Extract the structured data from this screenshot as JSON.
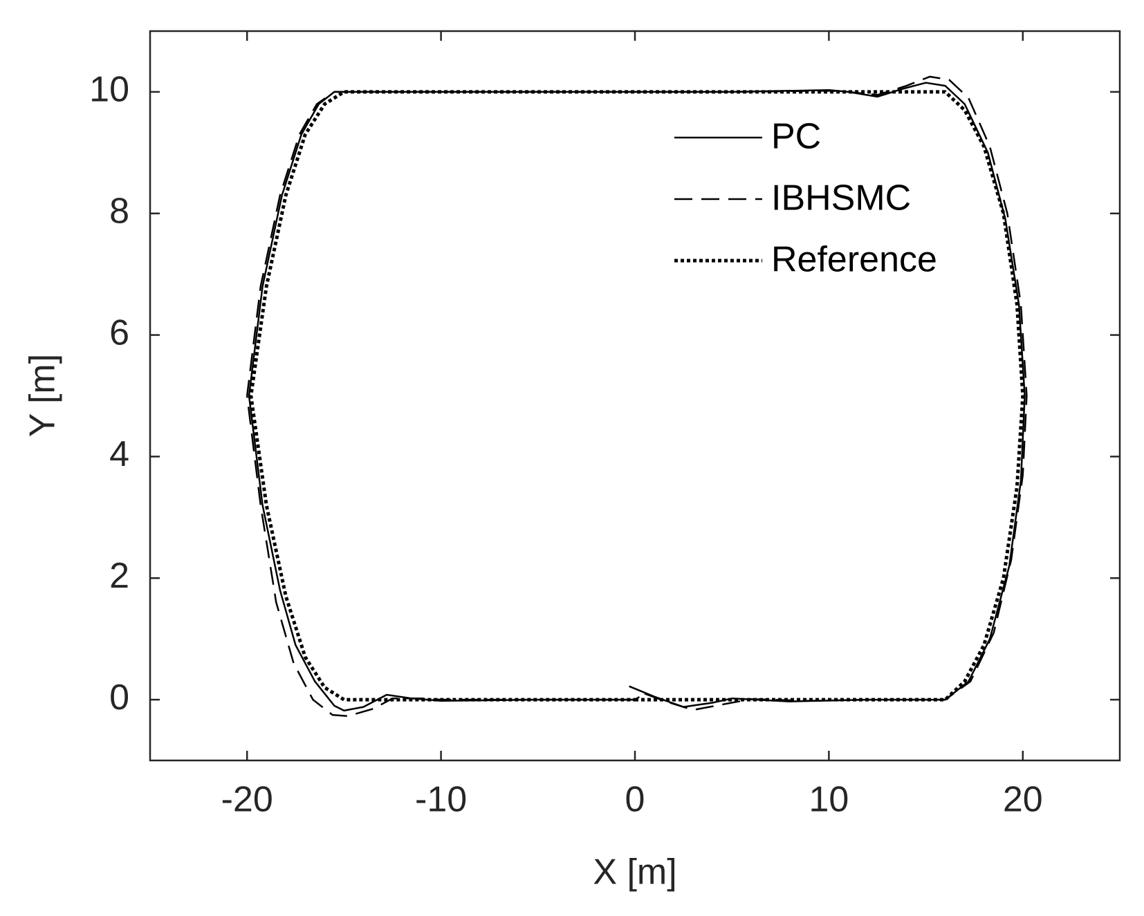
{
  "chart_data": {
    "type": "line",
    "xlabel": "X [m]",
    "ylabel": "Y [m]",
    "xlim": [
      -25,
      25
    ],
    "ylim": [
      -1,
      11
    ],
    "xticks": [
      -20,
      -10,
      0,
      10,
      20
    ],
    "yticks": [
      0,
      2,
      4,
      6,
      8,
      10
    ],
    "legend": "upper right",
    "series": [
      {
        "name": "PC",
        "color": "#000000",
        "line_style": "solid",
        "x": [
          -0.3,
          1,
          2.5,
          4,
          5,
          8,
          12,
          16,
          17.2,
          18.3,
          19.3,
          19.9,
          20.1,
          19.8,
          19.1,
          18.2,
          17,
          16,
          15,
          13.8,
          12.5,
          11,
          10,
          5,
          0,
          -10,
          -15.5,
          -16.3,
          -17.2,
          -18.2,
          -19.2,
          -19.9,
          -19.2,
          -18.3,
          -17.5,
          -16.5,
          -15.5,
          -15,
          -14,
          -12.8,
          -11.5,
          -10,
          -5,
          0
        ],
        "values": [
          0.22,
          0.05,
          -0.12,
          -0.05,
          0.02,
          -0.03,
          0,
          0,
          0.3,
          1,
          2.2,
          3.6,
          5,
          6.5,
          7.9,
          9,
          9.8,
          10.1,
          10.15,
          10.05,
          9.92,
          10.0,
          10.03,
          10,
          10,
          10,
          10,
          9.8,
          9.3,
          8.3,
          6.8,
          5,
          3.2,
          1.8,
          0.9,
          0.3,
          -0.1,
          -0.18,
          -0.12,
          0.08,
          0.02,
          -0.02,
          0,
          0
        ]
      },
      {
        "name": "IBHSMC",
        "color": "#000000",
        "line_style": "dashed",
        "x": [
          0.5,
          1.5,
          3,
          4.5,
          6,
          9,
          12,
          16,
          17.3,
          18.5,
          19.4,
          20,
          20.2,
          19.9,
          19.2,
          18.3,
          17.2,
          16.2,
          15.2,
          14,
          12.5,
          11,
          10,
          5,
          0,
          -10,
          -15.5,
          -16.4,
          -17.3,
          -18.3,
          -19.3,
          -20,
          -19.3,
          -18.5,
          -17.6,
          -16.6,
          -15.6,
          -14.8,
          -13.5,
          -12.5,
          -11,
          -10,
          -5,
          0,
          0.5
        ],
        "values": [
          0.1,
          -0.02,
          -0.17,
          -0.08,
          0.01,
          -0.02,
          0,
          0,
          0.3,
          1.1,
          2.3,
          3.7,
          5,
          6.5,
          8,
          9.1,
          9.9,
          10.2,
          10.25,
          10.1,
          9.95,
          10.0,
          10.02,
          10,
          10,
          10,
          10,
          9.8,
          9.3,
          8.3,
          6.8,
          5,
          3.2,
          1.6,
          0.6,
          0,
          -0.25,
          -0.27,
          -0.15,
          0.02,
          0.02,
          0,
          0,
          0,
          0.1
        ]
      },
      {
        "name": "Reference",
        "color": "#000000",
        "line_style": "dotted",
        "x": [
          0,
          5,
          10,
          15,
          16,
          17,
          18,
          19,
          19.7,
          20,
          19.7,
          19,
          18,
          17,
          16,
          10,
          0,
          -10,
          -15,
          -16,
          -17,
          -18,
          -19,
          -19.8,
          -19,
          -18,
          -17,
          -16,
          -15,
          -10,
          -5,
          0
        ],
        "values": [
          0,
          0,
          0,
          0,
          0,
          0.3,
          0.9,
          2,
          3.5,
          5,
          6.5,
          8,
          9.1,
          9.7,
          10,
          10,
          10,
          10,
          10,
          9.8,
          9.3,
          8.3,
          6.8,
          5,
          3.2,
          1.7,
          0.7,
          0.2,
          0,
          0,
          0,
          0
        ]
      }
    ]
  }
}
